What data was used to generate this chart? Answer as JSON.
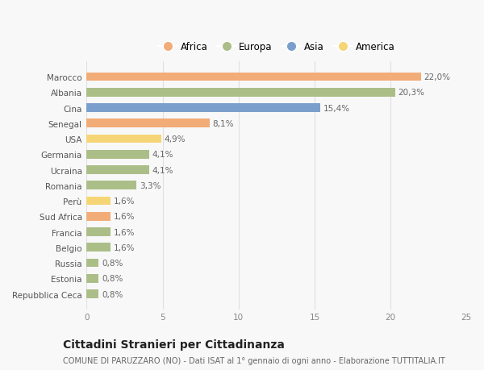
{
  "countries": [
    "Marocco",
    "Albania",
    "Cina",
    "Senegal",
    "USA",
    "Germania",
    "Ucraina",
    "Romania",
    "Perù",
    "Sud Africa",
    "Francia",
    "Belgio",
    "Russia",
    "Estonia",
    "Repubblica Ceca"
  ],
  "values": [
    22.0,
    20.3,
    15.4,
    8.1,
    4.9,
    4.1,
    4.1,
    3.3,
    1.6,
    1.6,
    1.6,
    1.6,
    0.8,
    0.8,
    0.8
  ],
  "labels": [
    "22,0%",
    "20,3%",
    "15,4%",
    "8,1%",
    "4,9%",
    "4,1%",
    "4,1%",
    "3,3%",
    "1,6%",
    "1,6%",
    "1,6%",
    "1,6%",
    "0,8%",
    "0,8%",
    "0,8%"
  ],
  "continents": [
    "Africa",
    "Europa",
    "Asia",
    "Africa",
    "America",
    "Europa",
    "Europa",
    "Europa",
    "America",
    "Africa",
    "Europa",
    "Europa",
    "Europa",
    "Europa",
    "Europa"
  ],
  "colors": {
    "Africa": "#F2AC78",
    "Europa": "#ABBE88",
    "Asia": "#7B9FCC",
    "America": "#F5D576"
  },
  "xlim": [
    0,
    25
  ],
  "xticks": [
    0,
    5,
    10,
    15,
    20,
    25
  ],
  "title": "Cittadini Stranieri per Cittadinanza",
  "subtitle": "COMUNE DI PARUZZARO (NO) - Dati ISAT al 1° gennaio di ogni anno - Elaborazione TUTTITALIA.IT",
  "background_color": "#f8f8f8",
  "grid_color": "#e0e0e0",
  "bar_height": 0.55,
  "label_fontsize": 7.5,
  "tick_fontsize": 7.5,
  "legend_fontsize": 8.5,
  "title_fontsize": 10,
  "subtitle_fontsize": 7
}
